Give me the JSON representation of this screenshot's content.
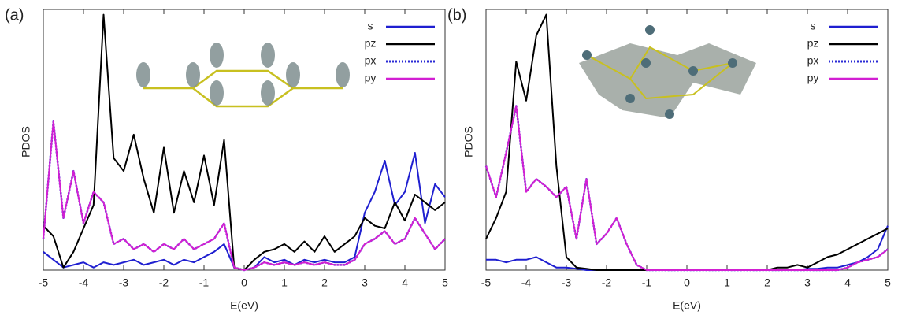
{
  "chart_data": [
    {
      "type": "line",
      "label": "(a)",
      "x_label": "E(eV)",
      "y_label": "PDOS",
      "legend": "upper right",
      "xlim": [
        -5,
        5
      ],
      "ylim": [
        0,
        100
      ],
      "xticks": [
        -5,
        -4,
        -3,
        -2,
        -1,
        0,
        1,
        2,
        3,
        4,
        5
      ],
      "x": [
        -5,
        -4.75,
        -4.5,
        -4.25,
        -4,
        -3.75,
        -3.5,
        -3.25,
        -3,
        -2.75,
        -2.5,
        -2.25,
        -2,
        -1.75,
        -1.5,
        -1.25,
        -1,
        -0.75,
        -0.5,
        -0.25,
        0,
        0.25,
        0.5,
        0.75,
        1,
        1.25,
        1.5,
        1.75,
        2,
        2.25,
        2.5,
        2.75,
        3,
        3.25,
        3.5,
        3.75,
        4,
        4.25,
        4.5,
        4.75,
        5
      ],
      "series": [
        {
          "name": "s",
          "color": "#1f1fd0",
          "values": [
            7,
            4,
            1,
            2,
            3,
            1,
            3,
            2,
            3,
            4,
            2,
            3,
            4,
            2,
            4,
            3,
            5,
            7,
            10,
            1,
            0,
            1,
            5,
            3,
            4,
            2,
            4,
            3,
            4,
            3,
            3,
            5,
            22,
            30,
            42,
            25,
            30,
            45,
            18,
            33,
            28
          ]
        },
        {
          "name": "pz",
          "color": "#000000",
          "values": [
            17,
            13,
            1,
            7,
            16,
            25,
            98,
            43,
            38,
            52,
            35,
            22,
            47,
            22,
            38,
            26,
            44,
            25,
            50,
            1,
            0,
            4,
            7,
            8,
            10,
            7,
            11,
            7,
            13,
            7,
            10,
            13,
            20,
            17,
            16,
            26,
            19,
            29,
            26,
            23,
            26
          ]
        },
        {
          "name": "px",
          "color": "#2b2bd6",
          "dotted": true,
          "values": [
            12,
            57,
            20,
            38,
            18,
            30,
            26,
            10,
            12,
            8,
            10,
            7,
            10,
            8,
            12,
            8,
            10,
            12,
            18,
            1,
            0,
            1,
            3,
            2,
            3,
            2,
            3,
            2,
            3,
            2,
            2,
            4,
            10,
            12,
            15,
            10,
            12,
            20,
            14,
            8,
            12
          ]
        },
        {
          "name": "py",
          "color": "#d21fd2",
          "values": [
            12,
            57,
            20,
            38,
            18,
            30,
            26,
            10,
            12,
            8,
            10,
            7,
            10,
            8,
            12,
            8,
            10,
            12,
            18,
            1,
            0,
            1,
            3,
            2,
            3,
            2,
            3,
            2,
            3,
            2,
            2,
            4,
            10,
            12,
            15,
            10,
            12,
            20,
            14,
            8,
            12
          ]
        }
      ]
    },
    {
      "type": "line",
      "label": "(b)",
      "x_label": "E(eV)",
      "y_label": "PDOS",
      "legend": "upper right",
      "xlim": [
        -5,
        5
      ],
      "ylim": [
        0,
        100
      ],
      "xticks": [
        -5,
        -4,
        -3,
        -2,
        -1,
        0,
        1,
        2,
        3,
        4,
        5
      ],
      "x": [
        -5,
        -4.75,
        -4.5,
        -4.25,
        -4,
        -3.75,
        -3.5,
        -3.25,
        -3,
        -2.75,
        -2.5,
        -2.25,
        -2,
        -1.75,
        -1.5,
        -1.25,
        -1,
        -0.75,
        -0.5,
        -0.25,
        0,
        0.25,
        0.5,
        0.75,
        1,
        1.25,
        1.5,
        1.75,
        2,
        2.25,
        2.5,
        2.75,
        3,
        3.25,
        3.5,
        3.75,
        4,
        4.25,
        4.5,
        4.75,
        5
      ],
      "series": [
        {
          "name": "s",
          "color": "#1f1fd0",
          "values": [
            4,
            4,
            3,
            4,
            4,
            5,
            3,
            1,
            1,
            0.5,
            0,
            0,
            0,
            0,
            0,
            0,
            0,
            0,
            0,
            0,
            0,
            0,
            0,
            0,
            0,
            0,
            0,
            0,
            0,
            0,
            0,
            0,
            0.5,
            0.5,
            1,
            1,
            2,
            3,
            5,
            8,
            17
          ]
        },
        {
          "name": "pz",
          "color": "#000000",
          "values": [
            12,
            20,
            30,
            80,
            65,
            90,
            98,
            40,
            5,
            1,
            0.5,
            0,
            0,
            0,
            0,
            0,
            0,
            0,
            0,
            0,
            0,
            0,
            0,
            0,
            0,
            0,
            0,
            0,
            0,
            1,
            1,
            2,
            1,
            3,
            5,
            6,
            8,
            10,
            12,
            14,
            16
          ]
        },
        {
          "name": "px",
          "color": "#2b2bd6",
          "dotted": true,
          "values": [
            40,
            28,
            45,
            63,
            30,
            35,
            32,
            28,
            32,
            12,
            35,
            10,
            14,
            20,
            10,
            2,
            0,
            0,
            0,
            0,
            0,
            0,
            0,
            0,
            0,
            0,
            0,
            0,
            0,
            0,
            0,
            0,
            0,
            0,
            0,
            0,
            1,
            3,
            4,
            5,
            8
          ]
        },
        {
          "name": "py",
          "color": "#d21fd2",
          "values": [
            40,
            28,
            45,
            63,
            30,
            35,
            32,
            28,
            32,
            12,
            35,
            10,
            14,
            20,
            10,
            2,
            0,
            0,
            0,
            0,
            0,
            0,
            0,
            0,
            0,
            0,
            0,
            0,
            0,
            0,
            0,
            0,
            0,
            0,
            0,
            0,
            1,
            3,
            4,
            5,
            8
          ]
        }
      ]
    }
  ]
}
